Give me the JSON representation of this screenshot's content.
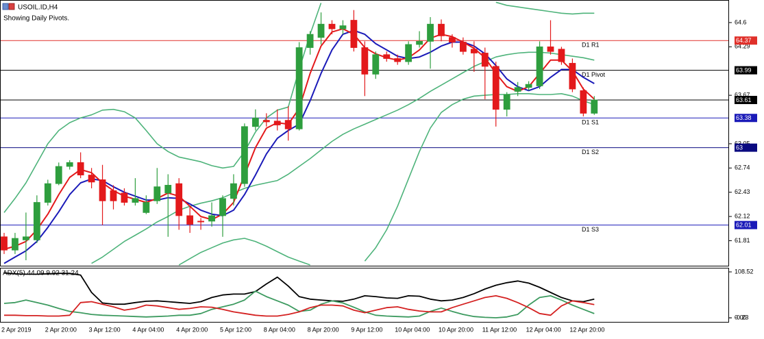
{
  "chart_data": [
    {
      "type": "candlestick",
      "title": "USOIL.ID,H4",
      "subtitle": "Showing Daily Pivots.",
      "categories": [
        "2 Apr 2019",
        null,
        null,
        null,
        "2 Apr 20:00",
        null,
        null,
        null,
        "3 Apr 12:00",
        null,
        null,
        null,
        "4 Apr 04:00",
        null,
        null,
        null,
        "4 Apr 20:00",
        null,
        null,
        null,
        "5 Apr 12:00",
        null,
        null,
        null,
        "8 Apr 04:00",
        null,
        null,
        null,
        "8 Apr 20:00",
        null,
        null,
        null,
        "9 Apr 12:00",
        null,
        null,
        null,
        "10 Apr 04:00",
        null,
        null,
        null,
        "10 Apr 20:00",
        null,
        null,
        null,
        "11 Apr 12:00",
        null,
        null,
        null,
        "12 Apr 04:00",
        null,
        null,
        null,
        "12 Apr 20:00",
        null,
        null
      ],
      "open": [
        61.86,
        61.69,
        61.82,
        61.82,
        62.3,
        62.54,
        62.76,
        62.81,
        62.65,
        62.59,
        62.45,
        62.42,
        62.3,
        62.17,
        62.32,
        62.42,
        62.54,
        62.13,
        62.06,
        62.06,
        62.13,
        62.35,
        62.54,
        63.27,
        63.35,
        63.34,
        63.35,
        63.24,
        64.28,
        64.41,
        64.58,
        64.52,
        64.63,
        64.28,
        63.94,
        64.19,
        64.14,
        64.1,
        64.32,
        64.36,
        64.58,
        64.41,
        64.35,
        64.26,
        64.21,
        64.04,
        63.49,
        63.72,
        63.77,
        63.79,
        64.29,
        64.26,
        64.08,
        63.73,
        63.44
      ],
      "high": [
        61.91,
        61.91,
        62.17,
        62.39,
        62.59,
        62.81,
        62.84,
        62.94,
        62.74,
        62.78,
        62.52,
        62.48,
        62.61,
        62.39,
        62.74,
        62.66,
        62.61,
        62.26,
        62.1,
        62.3,
        62.39,
        62.66,
        63.31,
        63.49,
        63.44,
        63.49,
        63.53,
        64.35,
        64.49,
        64.73,
        64.63,
        64.63,
        64.76,
        64.36,
        64.23,
        64.23,
        64.19,
        64.36,
        64.49,
        64.67,
        64.64,
        64.45,
        64.41,
        64.36,
        64.28,
        64.1,
        63.71,
        63.84,
        63.85,
        64.36,
        64.63,
        64.29,
        64.14,
        63.77,
        63.66
      ],
      "low": [
        61.64,
        61.64,
        61.56,
        61.78,
        62.26,
        62.52,
        62.72,
        62.61,
        62.48,
        62.01,
        62.21,
        62.26,
        62.26,
        62.15,
        62.28,
        61.86,
        61.95,
        61.91,
        61.95,
        61.99,
        61.86,
        62.26,
        62.5,
        63.22,
        63.27,
        63.22,
        63.09,
        63.22,
        64.19,
        64.32,
        64.45,
        64.45,
        64.23,
        63.66,
        63.88,
        64.1,
        64.06,
        64.06,
        64.28,
        64.01,
        64.36,
        64.28,
        64.19,
        63.97,
        63.62,
        63.27,
        63.4,
        63.66,
        63.73,
        63.75,
        64.19,
        64.06,
        63.71,
        63.4,
        63.42
      ],
      "close": [
        61.69,
        61.84,
        61.86,
        62.3,
        62.54,
        62.76,
        62.81,
        62.65,
        62.56,
        62.32,
        62.32,
        62.3,
        62.35,
        62.3,
        62.5,
        62.52,
        62.13,
        62.02,
        62.05,
        62.13,
        62.35,
        62.54,
        63.27,
        63.38,
        63.33,
        63.29,
        63.24,
        64.28,
        64.45,
        64.58,
        64.52,
        64.56,
        64.28,
        63.94,
        64.19,
        64.14,
        64.1,
        64.32,
        64.36,
        64.58,
        64.43,
        64.35,
        64.23,
        64.21,
        64.04,
        63.49,
        63.68,
        63.77,
        63.81,
        64.29,
        64.23,
        64.1,
        63.75,
        63.44,
        63.61
      ],
      "up_color": "#2e9e3e",
      "down_color": "#e3191b",
      "overlays": [
        {
          "color": "#4db37a",
          "values": [
            62.17,
            62.35,
            62.55,
            62.8,
            63.05,
            63.22,
            63.32,
            63.38,
            63.42,
            63.48,
            63.49,
            63.46,
            63.38,
            63.22,
            63.05,
            62.95,
            62.88,
            62.85,
            62.82,
            62.77,
            62.74,
            62.76,
            62.95,
            63.2,
            63.38,
            63.48,
            63.52,
            64.0,
            64.45,
            64.85,
            null,
            null,
            null,
            null,
            null,
            null,
            null,
            null,
            null,
            null,
            null,
            null,
            null,
            null,
            null,
            64.86,
            64.82,
            64.8,
            64.78,
            64.76,
            64.74,
            64.72,
            64.71,
            64.72,
            64.72
          ]
        },
        {
          "color": "#4db37a",
          "values": [
            null,
            null,
            null,
            null,
            null,
            null,
            null,
            null,
            61.52,
            61.6,
            61.7,
            61.8,
            61.88,
            61.96,
            62.05,
            62.12,
            62.2,
            62.25,
            62.29,
            62.32,
            62.36,
            62.42,
            62.48,
            62.52,
            62.55,
            62.58,
            62.66,
            62.76,
            62.86,
            62.97,
            63.08,
            63.17,
            63.24,
            63.3,
            63.36,
            63.42,
            63.48,
            63.55,
            63.63,
            63.72,
            63.8,
            63.88,
            63.96,
            64.04,
            64.1,
            64.16,
            64.19,
            64.21,
            64.22,
            64.22,
            64.21,
            64.19,
            64.17,
            64.15,
            64.12
          ]
        },
        {
          "color": "#4db37a",
          "values": [
            null,
            null,
            null,
            null,
            null,
            null,
            null,
            null,
            null,
            null,
            null,
            null,
            null,
            null,
            null,
            null,
            61.5,
            61.58,
            61.66,
            61.72,
            61.78,
            61.82,
            61.84,
            61.8,
            61.74,
            61.67,
            61.6,
            61.55,
            61.5,
            null,
            null,
            null,
            null,
            61.55,
            61.72,
            61.95,
            62.25,
            62.6,
            62.95,
            63.25,
            63.45,
            63.55,
            63.62,
            63.66,
            63.67,
            63.68,
            63.68,
            63.69,
            63.69,
            63.68,
            63.68,
            63.69,
            63.66,
            63.6,
            63.55
          ]
        },
        {
          "color": "#1a1ab8",
          "values": [
            61.52,
            61.6,
            61.68,
            61.8,
            61.98,
            62.18,
            62.4,
            62.55,
            62.6,
            62.58,
            62.5,
            62.43,
            62.38,
            62.33,
            62.33,
            62.36,
            62.35,
            62.28,
            62.2,
            62.15,
            62.13,
            62.2,
            62.4,
            62.65,
            62.92,
            63.12,
            63.22,
            63.3,
            63.6,
            63.95,
            64.25,
            64.45,
            64.5,
            64.45,
            64.33,
            64.25,
            64.17,
            64.14,
            64.16,
            64.22,
            64.3,
            64.35,
            64.35,
            64.3,
            64.2,
            64.05,
            63.88,
            63.78,
            63.73,
            63.78,
            63.9,
            64.0,
            64.0,
            63.9,
            63.82
          ]
        },
        {
          "color": "#e3191b",
          "values": [
            61.7,
            61.74,
            61.8,
            61.95,
            62.15,
            62.4,
            62.62,
            62.72,
            62.68,
            62.55,
            62.45,
            62.38,
            62.34,
            62.3,
            62.35,
            62.42,
            62.38,
            62.25,
            62.12,
            62.08,
            62.15,
            62.3,
            62.65,
            63.0,
            63.25,
            63.32,
            63.3,
            63.5,
            63.95,
            64.3,
            64.48,
            64.52,
            64.45,
            64.28,
            64.2,
            64.15,
            64.12,
            64.15,
            64.25,
            64.4,
            64.45,
            64.42,
            64.35,
            64.27,
            64.15,
            63.95,
            63.78,
            63.72,
            63.78,
            63.95,
            64.12,
            64.12,
            63.98,
            63.75,
            63.62
          ]
        }
      ],
      "levels": [
        {
          "name": "D1 R1",
          "value": 64.37,
          "color": "#e0302a"
        },
        {
          "name": "D1 Pivot",
          "value": 63.99,
          "color": "#000000"
        },
        {
          "name": "D1 S1",
          "value": 63.38,
          "color": "#1a1ab8"
        },
        {
          "name": "D1 S2",
          "value": 63.0,
          "color": "#0a0a80"
        },
        {
          "name": "D1 S3",
          "value": 62.01,
          "color": "#1a1ab8"
        }
      ],
      "bid": {
        "value": 63.61,
        "color": "#000000"
      },
      "ylim": [
        61.49,
        64.88
      ],
      "yticks": [
        64.6,
        64.29,
        63.67,
        63.05,
        62.74,
        62.43,
        62.12,
        61.81
      ]
    },
    {
      "type": "line",
      "title": "ADX(5) 44.09 9.92 31.24",
      "series": [
        {
          "color": "#000000",
          "values": [
            106,
            104,
            103,
            103,
            104,
            105,
            105,
            101,
            60,
            35,
            32,
            32,
            36,
            39,
            40,
            38,
            36,
            34,
            38,
            48,
            54,
            56,
            56,
            62,
            80,
            96,
            75,
            50,
            44,
            42,
            40,
            39,
            44,
            52,
            50,
            47,
            46,
            52,
            51,
            44,
            40,
            42,
            48,
            57,
            68,
            77,
            83,
            87,
            82,
            72,
            60,
            48,
            40,
            38,
            44.09
          ]
        },
        {
          "color": "#3c9a5f",
          "values": [
            34,
            36,
            42,
            36,
            30,
            22,
            15,
            12,
            8,
            6,
            5,
            4,
            3,
            2,
            3,
            4,
            6,
            6,
            10,
            20,
            26,
            32,
            42,
            63,
            50,
            40,
            30,
            15,
            18,
            32,
            40,
            35,
            25,
            14,
            6,
            4,
            3,
            2,
            4,
            15,
            23,
            15,
            8,
            3,
            1,
            0,
            2,
            8,
            30,
            48,
            52,
            42,
            30,
            20,
            9.92
          ]
        },
        {
          "color": "#d42020",
          "values": [
            6,
            6,
            5,
            5,
            4,
            4,
            6,
            36,
            38,
            32,
            26,
            18,
            22,
            30,
            28,
            24,
            20,
            22,
            26,
            25,
            20,
            14,
            10,
            6,
            4,
            4,
            8,
            14,
            24,
            30,
            30,
            28,
            18,
            12,
            18,
            24,
            26,
            20,
            16,
            14,
            14,
            24,
            32,
            40,
            48,
            52,
            46,
            36,
            24,
            10,
            6,
            28,
            40,
            36,
            31.24
          ]
        }
      ],
      "ylim": [
        -9.7,
        116.6
      ],
      "yticks": [
        108.52,
        {
          "value": 0,
          "label": "0.00"
        },
        -0.23
      ]
    }
  ]
}
